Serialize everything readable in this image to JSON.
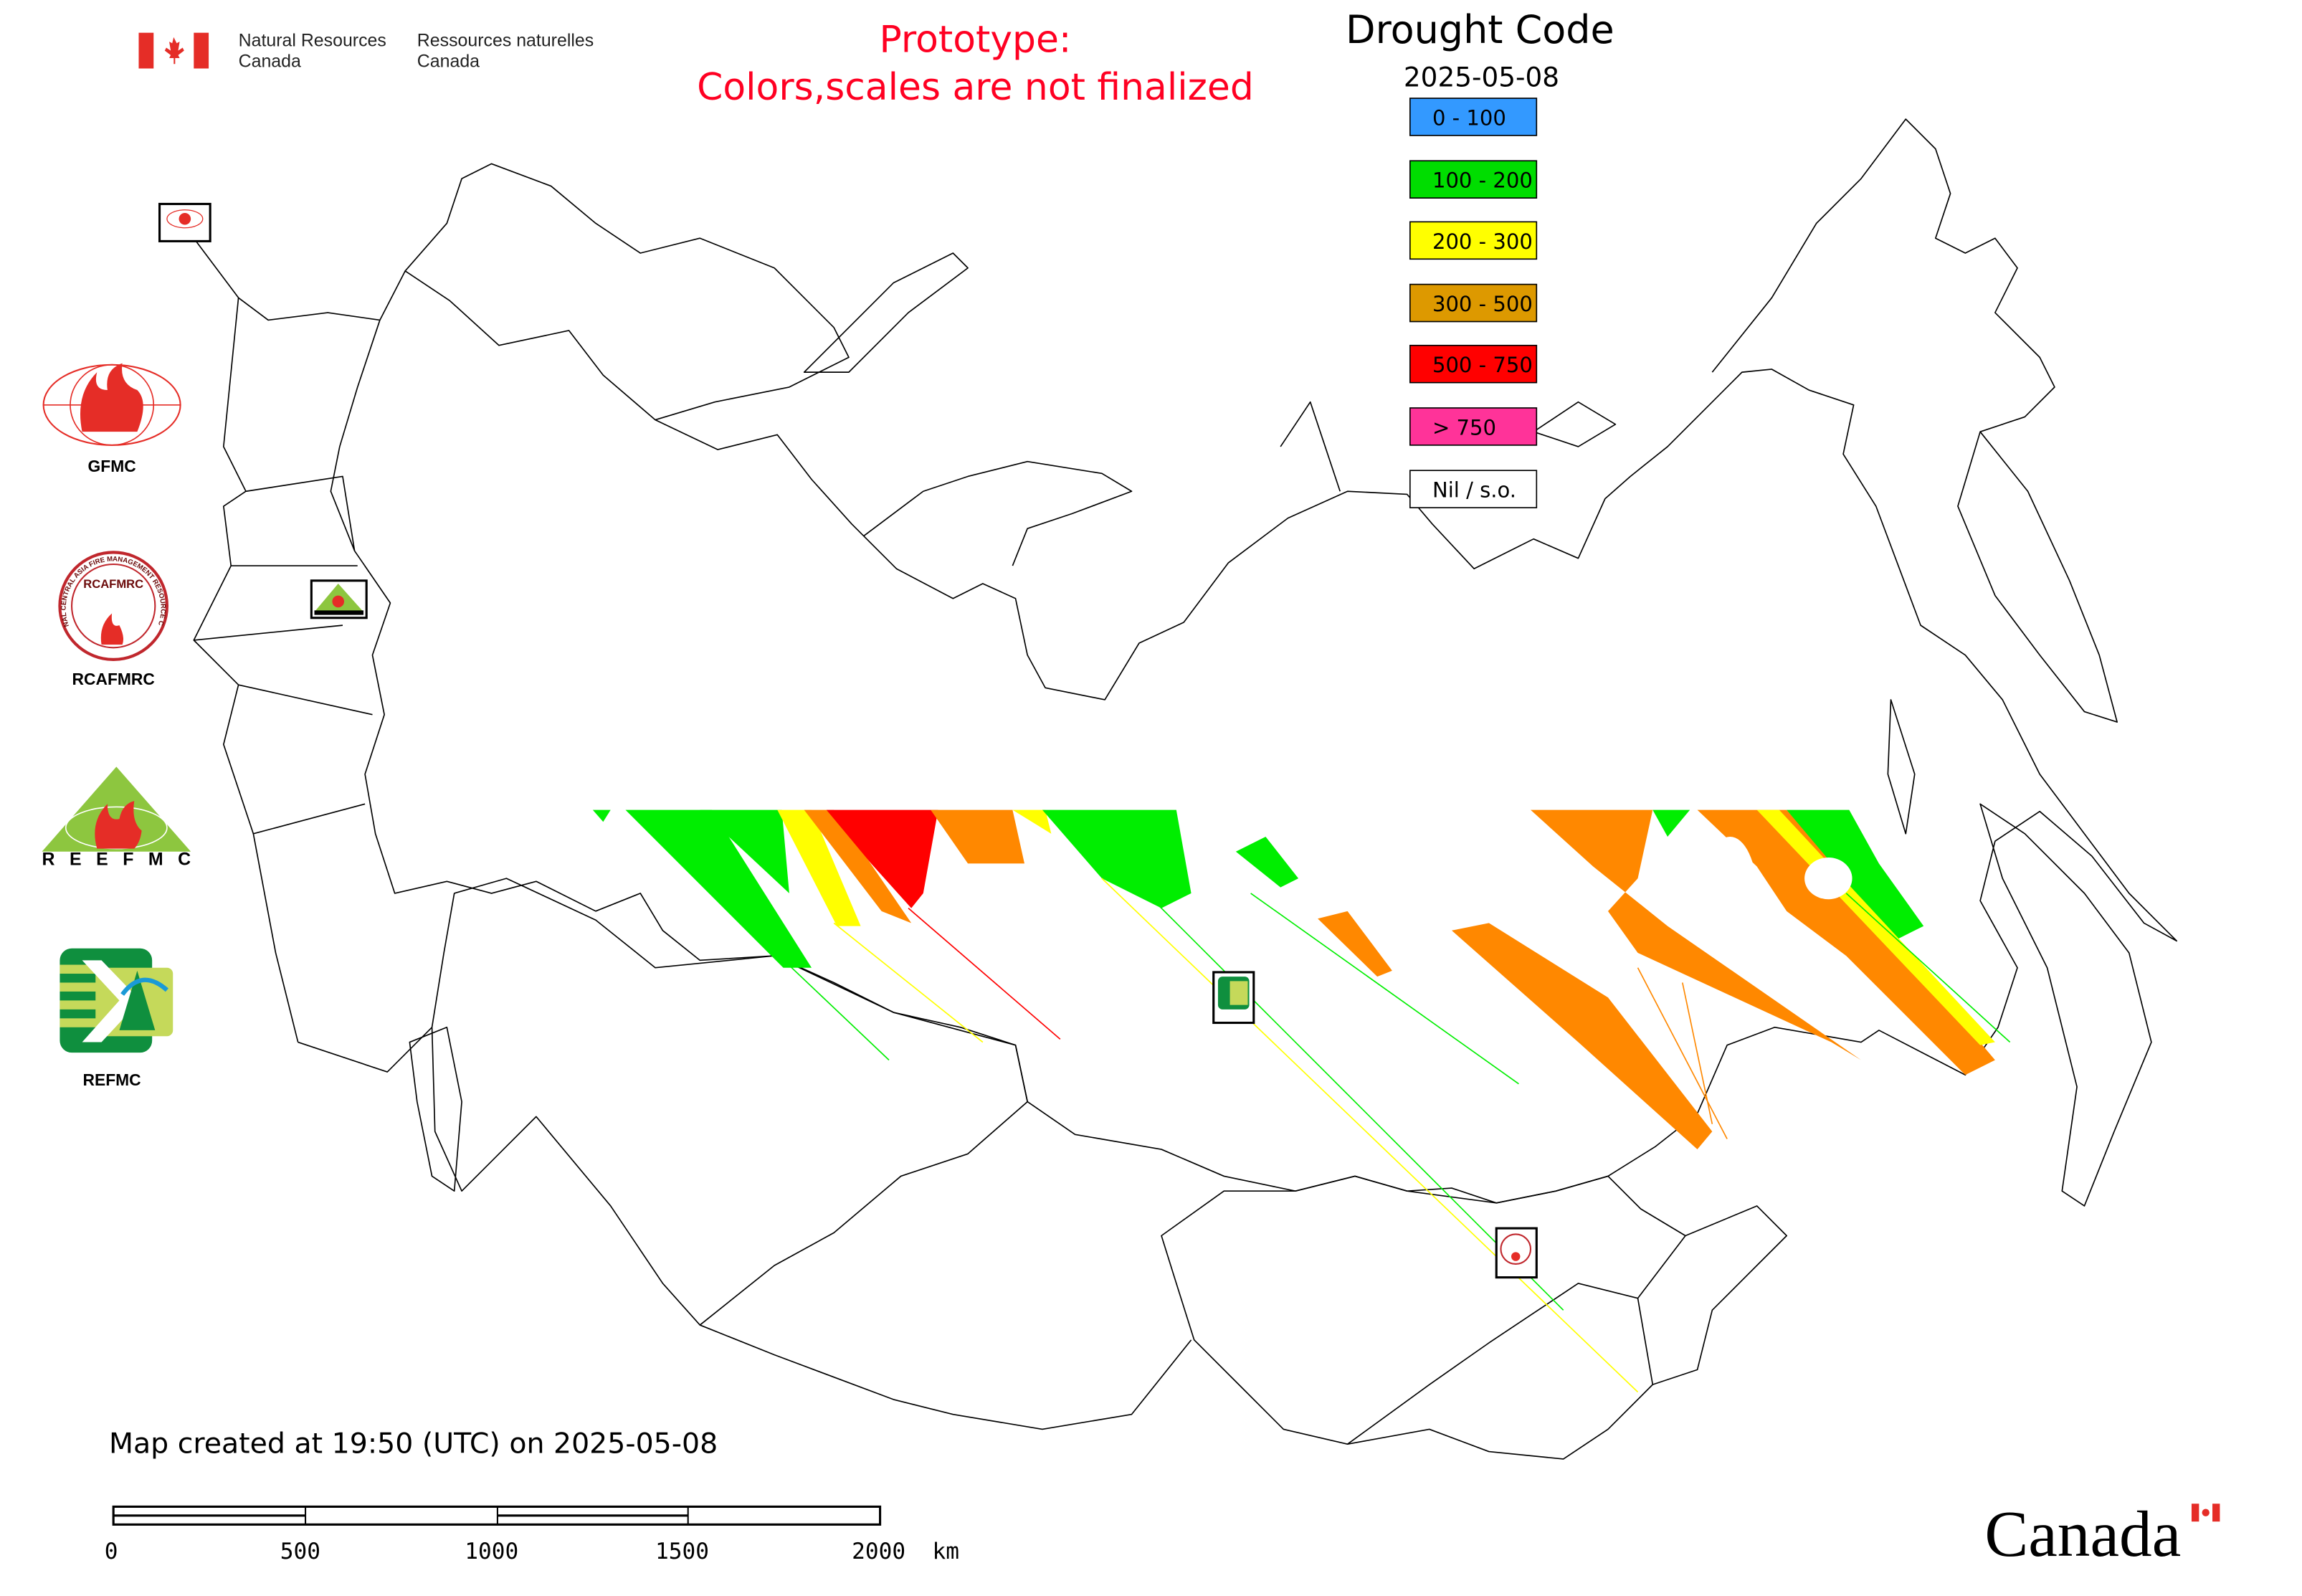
{
  "header": {
    "agency_en_line1": "Natural Resources",
    "agency_en_line2": "Canada",
    "agency_fr_line1": "Ressources naturelles",
    "agency_fr_line2": "Canada",
    "notice_line1": "Prototype:",
    "notice_line2": "Colors,scales are not finalized",
    "notice_color": "#ff0022"
  },
  "legend": {
    "title": "Drought Code",
    "date": "2025-05-08",
    "classes": [
      {
        "label": "0 - 100",
        "color": "#3399ff"
      },
      {
        "label": "100 - 200",
        "color": "#00dd00"
      },
      {
        "label": "200 - 300",
        "color": "#ffff00"
      },
      {
        "label": "300 - 500",
        "color": "#dd9900"
      },
      {
        "label": "500 - 750",
        "color": "#ff0000"
      },
      {
        "label": "> 750",
        "color": "#ff3399"
      },
      {
        "label": "Nil / s.o.",
        "color": "#ffffff"
      }
    ]
  },
  "partner_logos": [
    {
      "name": "GFMC",
      "label": "GFMC"
    },
    {
      "name": "RCAFMRC",
      "label": "RCAFMRC",
      "ring_text": "REGIONAL CENTRAL ASIA FIRE MANAGEMENT RESOURCE CENTER"
    },
    {
      "name": "REEFMC",
      "label": "REEFMC"
    },
    {
      "name": "REFMC",
      "label": "REFMC"
    }
  ],
  "map_markers": [
    "GFMC",
    "REEFMC",
    "REFMC",
    "RCAFMRC"
  ],
  "footer": {
    "created": "Map created at 19:50 (UTC) on 2025-05-08",
    "scale_ticks": [
      "0",
      "500",
      "1000",
      "1500",
      "2000  km"
    ],
    "wordmark": "Canada"
  }
}
